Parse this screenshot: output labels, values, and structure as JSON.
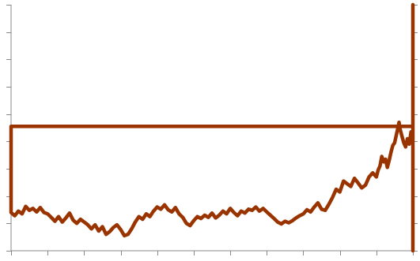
{
  "chart_data": {
    "type": "line",
    "title": "",
    "xlabel": "",
    "ylabel": "",
    "grid": false,
    "legend": "none",
    "series_color": "#993300",
    "axis_color": "#888888",
    "x_ticks": [
      0,
      1,
      2,
      3,
      4,
      5,
      6,
      7,
      8,
      9,
      10,
      11
    ],
    "y_ticks": [
      0,
      1,
      2,
      3,
      4,
      5,
      6,
      7,
      8,
      9
    ],
    "xlim": [
      0,
      11
    ],
    "ylim": [
      0,
      9
    ],
    "series": [
      {
        "values": [
          [
            0.0,
            1.4
          ],
          [
            0.1,
            1.28
          ],
          [
            0.2,
            1.45
          ],
          [
            0.3,
            1.35
          ],
          [
            0.4,
            1.62
          ],
          [
            0.5,
            1.48
          ],
          [
            0.6,
            1.55
          ],
          [
            0.7,
            1.42
          ],
          [
            0.8,
            1.58
          ],
          [
            0.9,
            1.4
          ],
          [
            1.0,
            1.35
          ],
          [
            1.1,
            1.22
          ],
          [
            1.2,
            1.08
          ],
          [
            1.3,
            1.25
          ],
          [
            1.4,
            1.05
          ],
          [
            1.5,
            1.2
          ],
          [
            1.6,
            1.38
          ],
          [
            1.7,
            1.12
          ],
          [
            1.8,
            1.0
          ],
          [
            1.9,
            1.15
          ],
          [
            2.0,
            1.05
          ],
          [
            2.1,
            0.95
          ],
          [
            2.2,
            0.8
          ],
          [
            2.3,
            0.95
          ],
          [
            2.4,
            0.72
          ],
          [
            2.5,
            0.88
          ],
          [
            2.6,
            0.6
          ],
          [
            2.7,
            0.7
          ],
          [
            2.8,
            0.85
          ],
          [
            2.9,
            0.95
          ],
          [
            3.0,
            0.78
          ],
          [
            3.1,
            0.55
          ],
          [
            3.2,
            0.6
          ],
          [
            3.3,
            0.8
          ],
          [
            3.4,
            1.05
          ],
          [
            3.5,
            1.25
          ],
          [
            3.6,
            1.15
          ],
          [
            3.7,
            1.35
          ],
          [
            3.8,
            1.25
          ],
          [
            3.9,
            1.45
          ],
          [
            4.0,
            1.6
          ],
          [
            4.1,
            1.52
          ],
          [
            4.2,
            1.68
          ],
          [
            4.3,
            1.5
          ],
          [
            4.4,
            1.42
          ],
          [
            4.5,
            1.58
          ],
          [
            4.6,
            1.35
          ],
          [
            4.7,
            1.22
          ],
          [
            4.8,
            1.0
          ],
          [
            4.9,
            0.92
          ],
          [
            5.0,
            1.1
          ],
          [
            5.1,
            1.25
          ],
          [
            5.2,
            1.18
          ],
          [
            5.3,
            1.3
          ],
          [
            5.4,
            1.22
          ],
          [
            5.5,
            1.38
          ],
          [
            5.6,
            1.2
          ],
          [
            5.7,
            1.3
          ],
          [
            5.8,
            1.45
          ],
          [
            5.9,
            1.35
          ],
          [
            6.0,
            1.55
          ],
          [
            6.1,
            1.4
          ],
          [
            6.2,
            1.28
          ],
          [
            6.3,
            1.45
          ],
          [
            6.4,
            1.38
          ],
          [
            6.5,
            1.52
          ],
          [
            6.6,
            1.48
          ],
          [
            6.7,
            1.6
          ],
          [
            6.8,
            1.45
          ],
          [
            6.9,
            1.55
          ],
          [
            7.0,
            1.42
          ],
          [
            7.1,
            1.3
          ],
          [
            7.2,
            1.18
          ],
          [
            7.3,
            1.05
          ],
          [
            7.4,
            0.98
          ],
          [
            7.5,
            1.08
          ],
          [
            7.6,
            1.02
          ],
          [
            7.7,
            1.1
          ],
          [
            7.8,
            1.2
          ],
          [
            7.9,
            1.28
          ],
          [
            8.0,
            1.35
          ],
          [
            8.1,
            1.5
          ],
          [
            8.2,
            1.42
          ],
          [
            8.3,
            1.6
          ],
          [
            8.4,
            1.75
          ],
          [
            8.5,
            1.52
          ],
          [
            8.6,
            1.48
          ],
          [
            8.7,
            1.7
          ],
          [
            8.8,
            1.95
          ],
          [
            8.9,
            2.25
          ],
          [
            9.0,
            2.15
          ],
          [
            9.1,
            2.55
          ],
          [
            9.2,
            2.45
          ],
          [
            9.3,
            2.35
          ],
          [
            9.4,
            2.65
          ],
          [
            9.5,
            2.48
          ],
          [
            9.6,
            2.3
          ],
          [
            9.7,
            2.4
          ],
          [
            9.8,
            2.7
          ],
          [
            9.9,
            2.85
          ],
          [
            10.0,
            2.7
          ],
          [
            10.05,
            2.95
          ],
          [
            10.1,
            3.1
          ],
          [
            10.15,
            3.45
          ],
          [
            10.2,
            3.25
          ],
          [
            10.25,
            3.35
          ],
          [
            10.3,
            3.05
          ],
          [
            10.35,
            3.3
          ],
          [
            10.4,
            3.6
          ],
          [
            10.45,
            3.85
          ],
          [
            10.5,
            3.95
          ],
          [
            10.55,
            4.25
          ],
          [
            10.6,
            4.55
          ],
          [
            10.62,
            4.7
          ],
          [
            10.65,
            4.45
          ],
          [
            10.7,
            4.2
          ],
          [
            10.75,
            3.95
          ],
          [
            10.8,
            3.8
          ],
          [
            10.85,
            4.1
          ],
          [
            10.9,
            3.9
          ],
          [
            10.95,
            4.35
          ],
          [
            11.0,
            4.1
          ],
          [
            11.0,
            9.0
          ],
          [
            11.0,
            4.15
          ],
          [
            11.0,
            0.3
          ],
          [
            11.0,
            4.6
          ],
          [
            11.0,
            4.4
          ],
          [
            11.0,
            9.0
          ],
          [
            11.0,
            4.3
          ],
          [
            11.0,
            0.0
          ],
          [
            11.0,
            4.5
          ],
          [
            11.0,
            4.4
          ],
          [
            11.0,
            4.6
          ],
          [
            11.0,
            4.1
          ],
          [
            11.0,
            4.8
          ],
          [
            11.0,
            4.42
          ],
          [
            11.0,
            4.55
          ],
          [
            0.0,
            4.55
          ],
          [
            0.0,
            1.4
          ]
        ]
      }
    ]
  }
}
